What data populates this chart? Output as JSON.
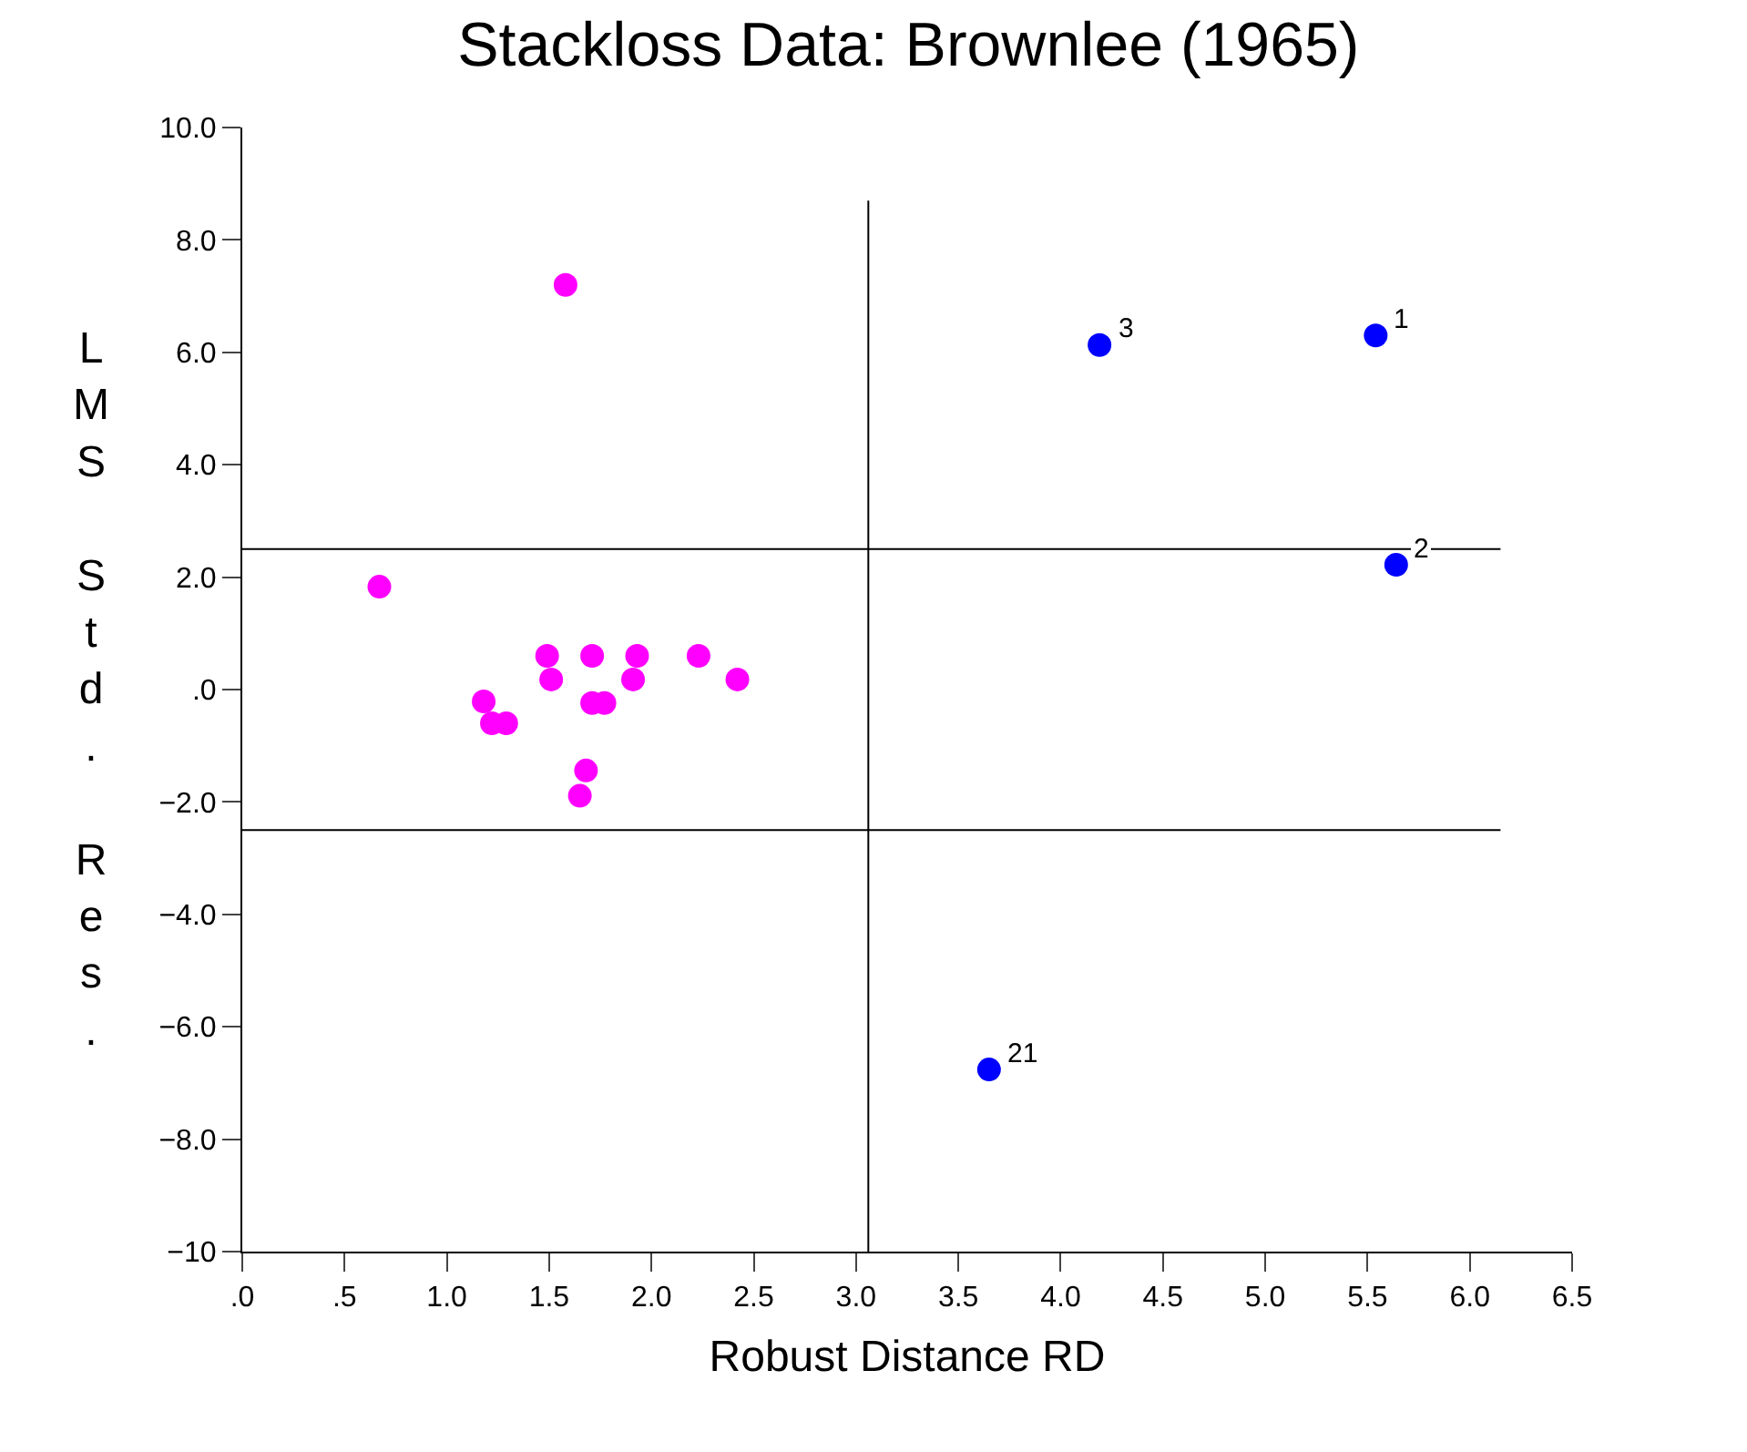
{
  "chart_data": {
    "type": "scatter",
    "title": "Stackloss Data: Brownlee (1965)",
    "xlabel": "Robust Distance RD",
    "ylabel": "LMS Std. Res.",
    "series": [
      {
        "color": "#ff00ff",
        "x": [
          1.58,
          0.67,
          1.49,
          1.51,
          1.71,
          1.93,
          1.91,
          2.23,
          2.42,
          1.18,
          1.22,
          1.29,
          1.71,
          1.77,
          1.68,
          1.65
        ],
        "values": [
          7.2,
          1.83,
          0.6,
          0.18,
          0.6,
          0.6,
          0.18,
          0.6,
          0.18,
          -0.21,
          -0.6,
          -0.6,
          -0.24,
          -0.24,
          -1.44,
          -1.89
        ]
      },
      {
        "color": "#0000ff",
        "x": [
          5.54,
          5.64,
          4.19,
          3.65
        ],
        "values": [
          6.3,
          2.22,
          6.13,
          -6.76
        ]
      }
    ],
    "annotations": [
      {
        "text": "1",
        "x": 5.54,
        "y": 6.3
      },
      {
        "text": "2",
        "x": 5.64,
        "y": 2.22
      },
      {
        "text": "3",
        "x": 4.19,
        "y": 6.13
      },
      {
        "text": "21",
        "x": 3.65,
        "y": -6.76
      }
    ],
    "ref_lines": [
      {
        "axis": "y",
        "value": 2.5,
        "color": "#000000"
      },
      {
        "axis": "y",
        "value": -2.5,
        "color": "#000000"
      },
      {
        "axis": "x",
        "value": 3.06,
        "color": "#000000"
      }
    ],
    "xlim": [
      0,
      6.5
    ],
    "xticks": [
      {
        "value": 0,
        "label": ".0"
      },
      {
        "value": 0.5,
        "label": ".5"
      },
      {
        "value": 1,
        "label": "1.0"
      },
      {
        "value": 1.5,
        "label": "1.5"
      },
      {
        "value": 2,
        "label": "2.0"
      },
      {
        "value": 2.5,
        "label": "2.5"
      },
      {
        "value": 3,
        "label": "3.0"
      },
      {
        "value": 3.5,
        "label": "3.5"
      },
      {
        "value": 4,
        "label": "4.0"
      },
      {
        "value": 4.5,
        "label": "4.5"
      },
      {
        "value": 5,
        "label": "5.0"
      },
      {
        "value": 5.5,
        "label": "5.5"
      },
      {
        "value": 6,
        "label": "6.0"
      },
      {
        "value": 6.5,
        "label": "6.5"
      }
    ],
    "ylim": [
      -10,
      10
    ],
    "yticks": [
      {
        "value": 10,
        "label": "10.0"
      },
      {
        "value": 8,
        "label": "8.0"
      },
      {
        "value": 6,
        "label": "6.0"
      },
      {
        "value": 4,
        "label": "4.0"
      },
      {
        "value": 2,
        "label": "2.0"
      },
      {
        "value": 0,
        "label": ".0"
      },
      {
        "value": -2,
        "label": "−2.0"
      },
      {
        "value": -4,
        "label": "−4.0"
      },
      {
        "value": -6,
        "label": "−6.0"
      },
      {
        "value": -8,
        "label": "−8.0"
      },
      {
        "value": -10,
        "label": "−10"
      }
    ],
    "marker": "circle"
  }
}
